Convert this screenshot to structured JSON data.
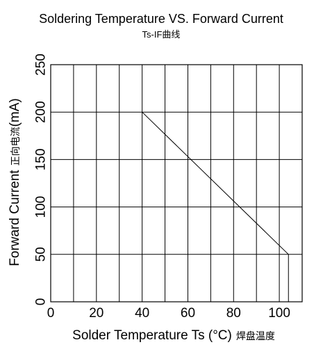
{
  "chart_data": {
    "type": "line",
    "title": "Soldering Temperature VS. Forward Current",
    "subtitle": "Ts-IF曲线",
    "xlabel": "Solder Temperature Ts (°C)",
    "xlabel_cjk": "焊盘温度",
    "ylabel": "Forward Current",
    "ylabel_cjk": "正向电流",
    "ylabel_unit": "(mA)",
    "xlim": [
      0,
      110
    ],
    "ylim": [
      0,
      250
    ],
    "x_ticks": [
      0,
      20,
      40,
      60,
      80,
      100
    ],
    "y_ticks": [
      0,
      50,
      100,
      150,
      200,
      250
    ],
    "x_grid_step": 10,
    "y_grid_step": 50,
    "grid": true,
    "legend": "none",
    "series": [
      {
        "x": [
          40,
          104,
          104
        ],
        "y": [
          200,
          50,
          0
        ]
      }
    ]
  }
}
